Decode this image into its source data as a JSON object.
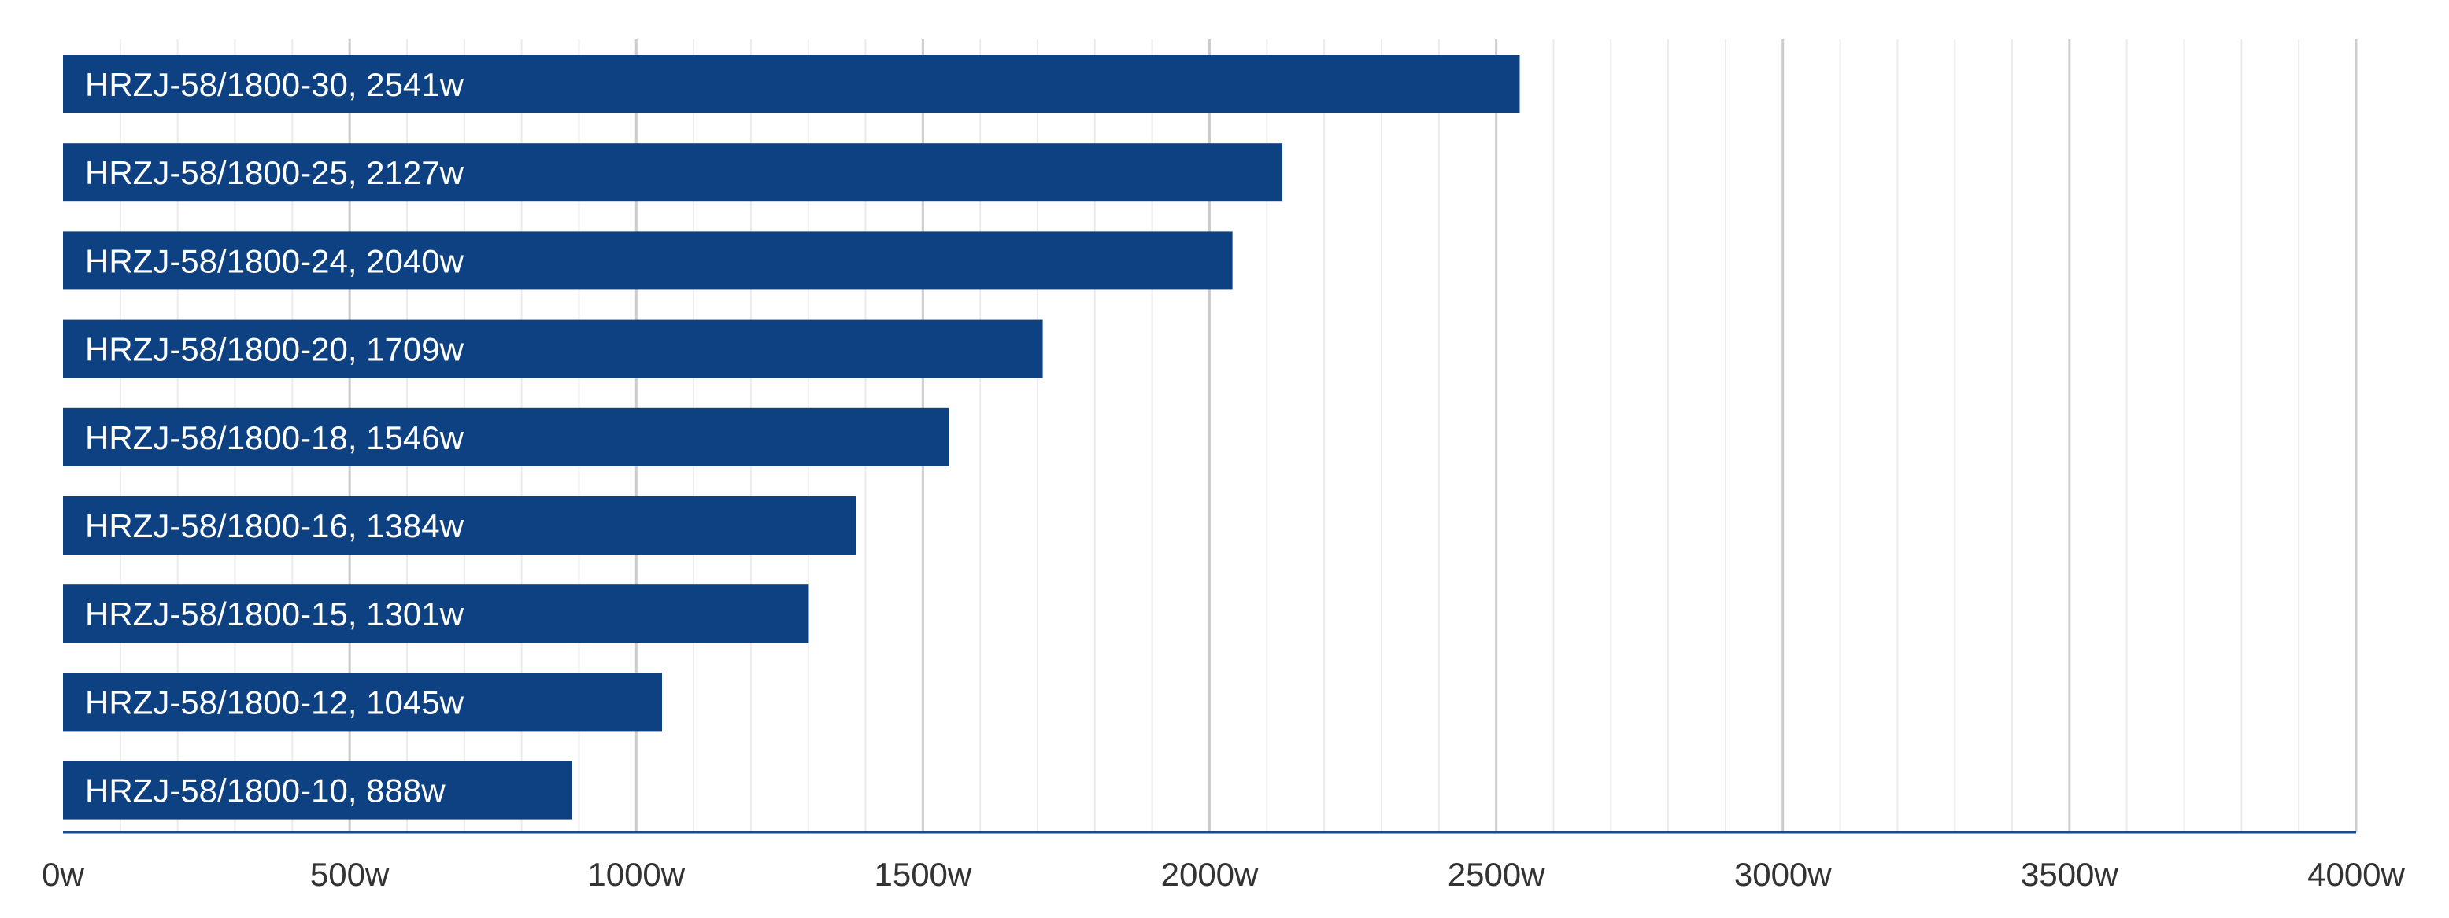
{
  "chart_data": {
    "type": "bar",
    "orientation": "horizontal",
    "categories": [
      "HRZJ-58/1800-30",
      "HRZJ-58/1800-25",
      "HRZJ-58/1800-24",
      "HRZJ-58/1800-20",
      "HRZJ-58/1800-18",
      "HRZJ-58/1800-16",
      "HRZJ-58/1800-15",
      "HRZJ-58/1800-12",
      "HRZJ-58/1800-10"
    ],
    "values": [
      2541,
      2127,
      2040,
      1709,
      1546,
      1384,
      1301,
      1045,
      888
    ],
    "value_labels": [
      "HRZJ-58/1800-30, 2541w",
      "HRZJ-58/1800-25, 2127w",
      "HRZJ-58/1800-24, 2040w",
      "HRZJ-58/1800-20, 1709w",
      "HRZJ-58/1800-18, 1546w",
      "HRZJ-58/1800-16, 1384w",
      "HRZJ-58/1800-15, 1301w",
      "HRZJ-58/1800-12, 1045w",
      "HRZJ-58/1800-10, 888w"
    ],
    "title": "",
    "xlabel": "",
    "ylabel": "",
    "xlim": [
      0,
      4000
    ],
    "x_ticks": [
      0,
      500,
      1000,
      1500,
      2000,
      2500,
      3000,
      3500,
      4000
    ],
    "x_tick_labels": [
      "0w",
      "500w",
      "1000w",
      "1500w",
      "2000w",
      "2500w",
      "3000w",
      "3500w",
      "4000w"
    ],
    "minor_tick_step": 100,
    "grid": true,
    "legend": "none",
    "colors": {
      "bar": "#0e4182",
      "axis": "#1a4a8a",
      "major_grid": "#cccccc",
      "minor_grid": "#ebebeb"
    }
  }
}
